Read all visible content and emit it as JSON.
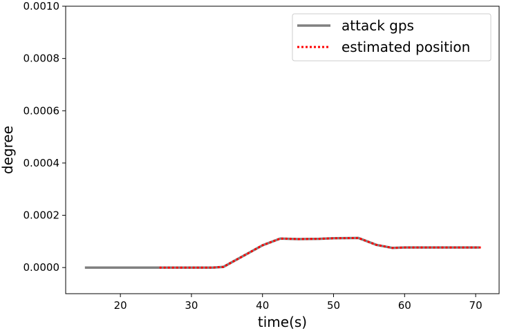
{
  "chart_data": {
    "type": "line",
    "xlabel": "time(s)",
    "ylabel": "degree",
    "xlim": [
      12.3,
      73.3
    ],
    "ylim": [
      -0.0001,
      0.001
    ],
    "xticks": [
      20,
      30,
      40,
      50,
      60,
      70
    ],
    "xtick_labels": [
      "20",
      "30",
      "40",
      "50",
      "60",
      "70"
    ],
    "yticks": [
      0.0,
      0.0002,
      0.0004,
      0.0006,
      0.0008,
      0.001
    ],
    "ytick_labels": [
      "0.0000",
      "0.0002",
      "0.0004",
      "0.0006",
      "0.0008",
      "0.0010"
    ],
    "grid": false,
    "legend_position": "top-right",
    "series": [
      {
        "name": "attack gps",
        "color": "#808080",
        "style": "solid",
        "x": [
          15.0,
          20.0,
          25.0,
          30.0,
          33.0,
          34.5,
          36.0,
          38.0,
          40.0,
          42.5,
          45.0,
          48.0,
          50.0,
          53.5,
          56.0,
          58.3,
          60.0,
          65.0,
          70.5
        ],
        "y": [
          0.0,
          0.0,
          0.0,
          0.0,
          0.0,
          2.5e-06,
          2.5e-05,
          5.5e-05,
          8.5e-05,
          0.000111,
          0.000109,
          0.00011,
          0.000112,
          0.000113,
          8.7e-05,
          7.5e-05,
          7.7e-05,
          7.7e-05,
          7.7e-05
        ]
      },
      {
        "name": "estimated position",
        "color": "#ff0000",
        "style": "dotted",
        "x": [
          25.5,
          30.0,
          33.0,
          34.5,
          36.0,
          38.0,
          40.0,
          42.5,
          45.0,
          48.0,
          50.0,
          53.5,
          56.0,
          58.3,
          60.0,
          65.0,
          71.0
        ],
        "y": [
          0.0,
          0.0,
          0.0,
          2.5e-06,
          2.5e-05,
          5.5e-05,
          8.5e-05,
          0.000111,
          0.000109,
          0.00011,
          0.000112,
          0.000113,
          8.7e-05,
          7.5e-05,
          7.7e-05,
          7.7e-05,
          7.7e-05
        ]
      }
    ]
  }
}
